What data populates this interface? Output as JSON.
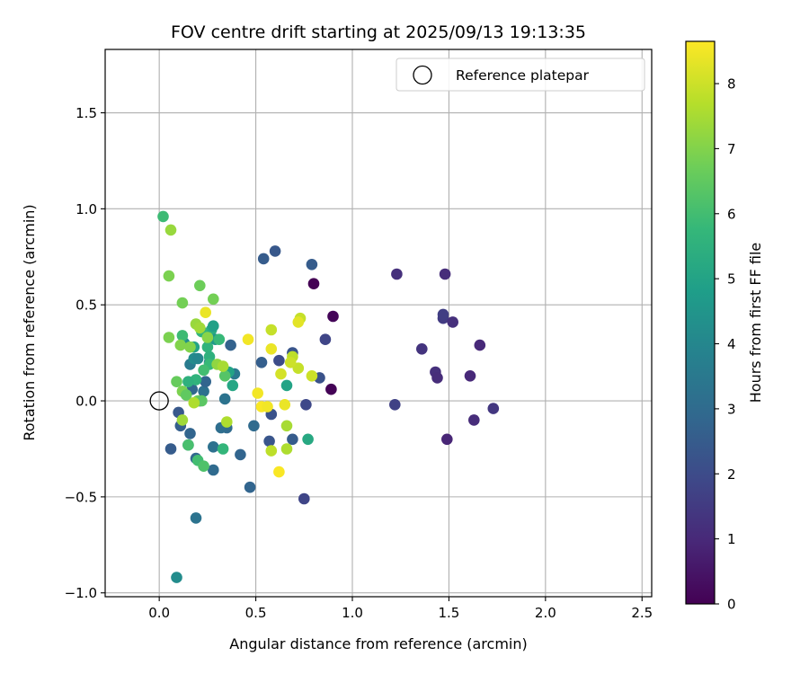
{
  "chart_data": {
    "type": "scatter",
    "title": "FOV centre drift starting at 2025/09/13 19:13:35",
    "xlabel": "Angular distance from reference (arcmin)",
    "ylabel": "Rotation from reference (arcmin)",
    "xlim": [
      -0.28,
      2.55
    ],
    "ylim": [
      -1.02,
      1.83
    ],
    "xticks": [
      0.0,
      0.5,
      1.0,
      1.5,
      2.0,
      2.5
    ],
    "xtick_labels": [
      "0.0",
      "0.5",
      "1.0",
      "1.5",
      "2.0",
      "2.5"
    ],
    "yticks": [
      -1.0,
      -0.5,
      0.0,
      0.5,
      1.0,
      1.5
    ],
    "ytick_labels": [
      "−1.0",
      "−0.5",
      "0.0",
      "0.5",
      "1.0",
      "1.5"
    ],
    "grid": true,
    "legend": {
      "placement": "top-right",
      "entries": [
        {
          "label": "Reference platepar",
          "marker": "open-circle"
        }
      ]
    },
    "reference_point": {
      "x": 0.0,
      "y": 0.0
    },
    "colorbar": {
      "label": "Hours from first FF file",
      "min": 0,
      "max": 8.65,
      "ticks": [
        0,
        1,
        2,
        3,
        4,
        5,
        6,
        7,
        8
      ],
      "tick_labels": [
        "0",
        "1",
        "2",
        "3",
        "4",
        "5",
        "6",
        "7",
        "8"
      ],
      "colormap": "viridis",
      "colors": [
        "#440154",
        "#482878",
        "#3e4989",
        "#31688e",
        "#26828e",
        "#1f9e89",
        "#35b779",
        "#6ece58",
        "#b5de2b",
        "#fde725"
      ]
    },
    "points": [
      {
        "x": 0.8,
        "y": 0.61,
        "c": 0.0
      },
      {
        "x": 0.9,
        "y": 0.44,
        "c": 0.1
      },
      {
        "x": 0.89,
        "y": 0.06,
        "c": 0.05
      },
      {
        "x": 1.23,
        "y": 0.66,
        "c": 1.2
      },
      {
        "x": 1.48,
        "y": 0.66,
        "c": 1.1
      },
      {
        "x": 1.36,
        "y": 0.27,
        "c": 1.3
      },
      {
        "x": 1.47,
        "y": 0.43,
        "c": 1.5
      },
      {
        "x": 1.47,
        "y": 0.45,
        "c": 1.6
      },
      {
        "x": 1.52,
        "y": 0.41,
        "c": 1.2
      },
      {
        "x": 1.66,
        "y": 0.29,
        "c": 1.0
      },
      {
        "x": 1.43,
        "y": 0.15,
        "c": 1.2
      },
      {
        "x": 1.44,
        "y": 0.12,
        "c": 1.1
      },
      {
        "x": 1.61,
        "y": 0.13,
        "c": 1.0
      },
      {
        "x": 1.22,
        "y": -0.02,
        "c": 1.7
      },
      {
        "x": 1.73,
        "y": -0.04,
        "c": 1.4
      },
      {
        "x": 1.63,
        "y": -0.1,
        "c": 1.1
      },
      {
        "x": 1.49,
        "y": -0.2,
        "c": 0.9
      },
      {
        "x": 0.86,
        "y": 0.32,
        "c": 1.8
      },
      {
        "x": 0.83,
        "y": 0.12,
        "c": 2.2
      },
      {
        "x": 0.76,
        "y": -0.02,
        "c": 1.9
      },
      {
        "x": 0.75,
        "y": -0.51,
        "c": 1.8
      },
      {
        "x": 0.6,
        "y": 0.78,
        "c": 2.4
      },
      {
        "x": 0.54,
        "y": 0.74,
        "c": 2.5
      },
      {
        "x": 0.79,
        "y": 0.71,
        "c": 2.5
      },
      {
        "x": 0.69,
        "y": 0.25,
        "c": 2.3
      },
      {
        "x": 0.62,
        "y": 0.21,
        "c": 2.0
      },
      {
        "x": 0.53,
        "y": 0.2,
        "c": 2.6
      },
      {
        "x": 0.58,
        "y": -0.07,
        "c": 2.2
      },
      {
        "x": 0.57,
        "y": -0.21,
        "c": 2.3
      },
      {
        "x": 0.69,
        "y": -0.2,
        "c": 2.5
      },
      {
        "x": 0.49,
        "y": -0.13,
        "c": 3.0
      },
      {
        "x": 0.47,
        "y": -0.45,
        "c": 2.8
      },
      {
        "x": 0.37,
        "y": 0.29,
        "c": 2.7
      },
      {
        "x": 0.39,
        "y": 0.14,
        "c": 3.5
      },
      {
        "x": 0.34,
        "y": 0.01,
        "c": 3.3
      },
      {
        "x": 0.35,
        "y": -0.14,
        "c": 3.0
      },
      {
        "x": 0.32,
        "y": -0.14,
        "c": 3.1
      },
      {
        "x": 0.42,
        "y": -0.28,
        "c": 2.8
      },
      {
        "x": 0.28,
        "y": -0.36,
        "c": 3.0
      },
      {
        "x": 0.28,
        "y": -0.24,
        "c": 3.2
      },
      {
        "x": 0.19,
        "y": -0.3,
        "c": 2.9
      },
      {
        "x": 0.06,
        "y": -0.25,
        "c": 2.5
      },
      {
        "x": 0.16,
        "y": -0.17,
        "c": 2.8
      },
      {
        "x": 0.15,
        "y": -0.23,
        "c": 3.5
      },
      {
        "x": 0.11,
        "y": -0.13,
        "c": 2.6
      },
      {
        "x": 0.1,
        "y": -0.06,
        "c": 2.4
      },
      {
        "x": 0.19,
        "y": -0.61,
        "c": 3.3
      },
      {
        "x": 0.09,
        "y": -0.92,
        "c": 4.2
      },
      {
        "x": 0.17,
        "y": 0.06,
        "c": 2.9
      },
      {
        "x": 0.21,
        "y": 0.0,
        "c": 0.9
      },
      {
        "x": 0.23,
        "y": 0.05,
        "c": 3.2
      },
      {
        "x": 0.24,
        "y": 0.1,
        "c": 2.8
      },
      {
        "x": 0.26,
        "y": 0.2,
        "c": 3.4
      },
      {
        "x": 0.16,
        "y": 0.19,
        "c": 3.6
      },
      {
        "x": 0.18,
        "y": 0.22,
        "c": 4.2
      },
      {
        "x": 0.2,
        "y": 0.22,
        "c": 4.0
      },
      {
        "x": 0.13,
        "y": 0.3,
        "c": 4.3
      },
      {
        "x": 0.18,
        "y": 0.28,
        "c": 5.0
      },
      {
        "x": 0.27,
        "y": 0.37,
        "c": 5.3
      },
      {
        "x": 0.28,
        "y": 0.39,
        "c": 4.9
      },
      {
        "x": 0.29,
        "y": 0.32,
        "c": 4.6
      },
      {
        "x": 0.31,
        "y": 0.32,
        "c": 5.8
      },
      {
        "x": 0.22,
        "y": 0.36,
        "c": 5.7
      },
      {
        "x": 0.25,
        "y": 0.28,
        "c": 5.6
      },
      {
        "x": 0.26,
        "y": 0.23,
        "c": 5.5
      },
      {
        "x": 0.26,
        "y": 0.19,
        "c": 5.8
      },
      {
        "x": 0.23,
        "y": 0.16,
        "c": 6.0
      },
      {
        "x": 0.19,
        "y": 0.11,
        "c": 5.6
      },
      {
        "x": 0.15,
        "y": 0.1,
        "c": 5.5
      },
      {
        "x": 0.12,
        "y": 0.34,
        "c": 5.9
      },
      {
        "x": 0.36,
        "y": 0.15,
        "c": 5.0
      },
      {
        "x": 0.38,
        "y": 0.08,
        "c": 5.1
      },
      {
        "x": 0.34,
        "y": 0.13,
        "c": 6.3
      },
      {
        "x": 0.33,
        "y": -0.25,
        "c": 5.7
      },
      {
        "x": 0.2,
        "y": -0.31,
        "c": 6.0
      },
      {
        "x": 0.23,
        "y": -0.34,
        "c": 6.2
      },
      {
        "x": 0.15,
        "y": -0.23,
        "c": 6.1
      },
      {
        "x": 0.02,
        "y": 0.96,
        "c": 5.9
      },
      {
        "x": 0.66,
        "y": 0.08,
        "c": 5.0
      },
      {
        "x": 0.77,
        "y": -0.2,
        "c": 5.2
      },
      {
        "x": 0.09,
        "y": 0.1,
        "c": 6.6
      },
      {
        "x": 0.12,
        "y": 0.05,
        "c": 6.9
      },
      {
        "x": 0.14,
        "y": 0.03,
        "c": 6.5
      },
      {
        "x": 0.2,
        "y": 0.0,
        "c": 6.7
      },
      {
        "x": 0.22,
        "y": 0.0,
        "c": 6.4
      },
      {
        "x": 0.28,
        "y": 0.53,
        "c": 6.8
      },
      {
        "x": 0.21,
        "y": 0.6,
        "c": 6.7
      },
      {
        "x": 0.05,
        "y": 0.65,
        "c": 6.9
      },
      {
        "x": 0.12,
        "y": 0.51,
        "c": 6.8
      },
      {
        "x": 0.05,
        "y": 0.33,
        "c": 6.9
      },
      {
        "x": 0.11,
        "y": 0.29,
        "c": 7.0
      },
      {
        "x": 0.16,
        "y": 0.28,
        "c": 7.0
      },
      {
        "x": 0.19,
        "y": 0.4,
        "c": 7.3
      },
      {
        "x": 0.21,
        "y": 0.38,
        "c": 7.4
      },
      {
        "x": 0.06,
        "y": 0.89,
        "c": 7.3
      },
      {
        "x": 0.3,
        "y": 0.19,
        "c": 7.2
      },
      {
        "x": 0.33,
        "y": 0.18,
        "c": 7.5
      },
      {
        "x": 0.35,
        "y": -0.11,
        "c": 7.6
      },
      {
        "x": 0.12,
        "y": -0.1,
        "c": 7.4
      },
      {
        "x": 0.18,
        "y": -0.01,
        "c": 7.6
      },
      {
        "x": 0.25,
        "y": 0.33,
        "c": 7.1
      },
      {
        "x": 0.66,
        "y": -0.13,
        "c": 7.5
      },
      {
        "x": 0.66,
        "y": -0.25,
        "c": 7.6
      },
      {
        "x": 0.58,
        "y": -0.26,
        "c": 7.8
      },
      {
        "x": 0.58,
        "y": 0.37,
        "c": 7.9
      },
      {
        "x": 0.73,
        "y": 0.43,
        "c": 7.9
      },
      {
        "x": 0.72,
        "y": 0.17,
        "c": 7.9
      },
      {
        "x": 0.69,
        "y": 0.23,
        "c": 7.8
      },
      {
        "x": 0.68,
        "y": 0.2,
        "c": 8.0
      },
      {
        "x": 0.63,
        "y": 0.14,
        "c": 8.1
      },
      {
        "x": 0.79,
        "y": 0.13,
        "c": 8.0
      },
      {
        "x": 0.72,
        "y": 0.41,
        "c": 8.3
      },
      {
        "x": 0.58,
        "y": 0.27,
        "c": 8.4
      },
      {
        "x": 0.46,
        "y": 0.32,
        "c": 8.5
      },
      {
        "x": 0.24,
        "y": 0.46,
        "c": 8.4
      },
      {
        "x": 0.51,
        "y": 0.04,
        "c": 8.5
      },
      {
        "x": 0.53,
        "y": -0.03,
        "c": 8.6
      },
      {
        "x": 0.56,
        "y": -0.03,
        "c": 8.5
      },
      {
        "x": 0.65,
        "y": -0.02,
        "c": 8.4
      },
      {
        "x": 0.62,
        "y": -0.37,
        "c": 8.6
      }
    ]
  }
}
